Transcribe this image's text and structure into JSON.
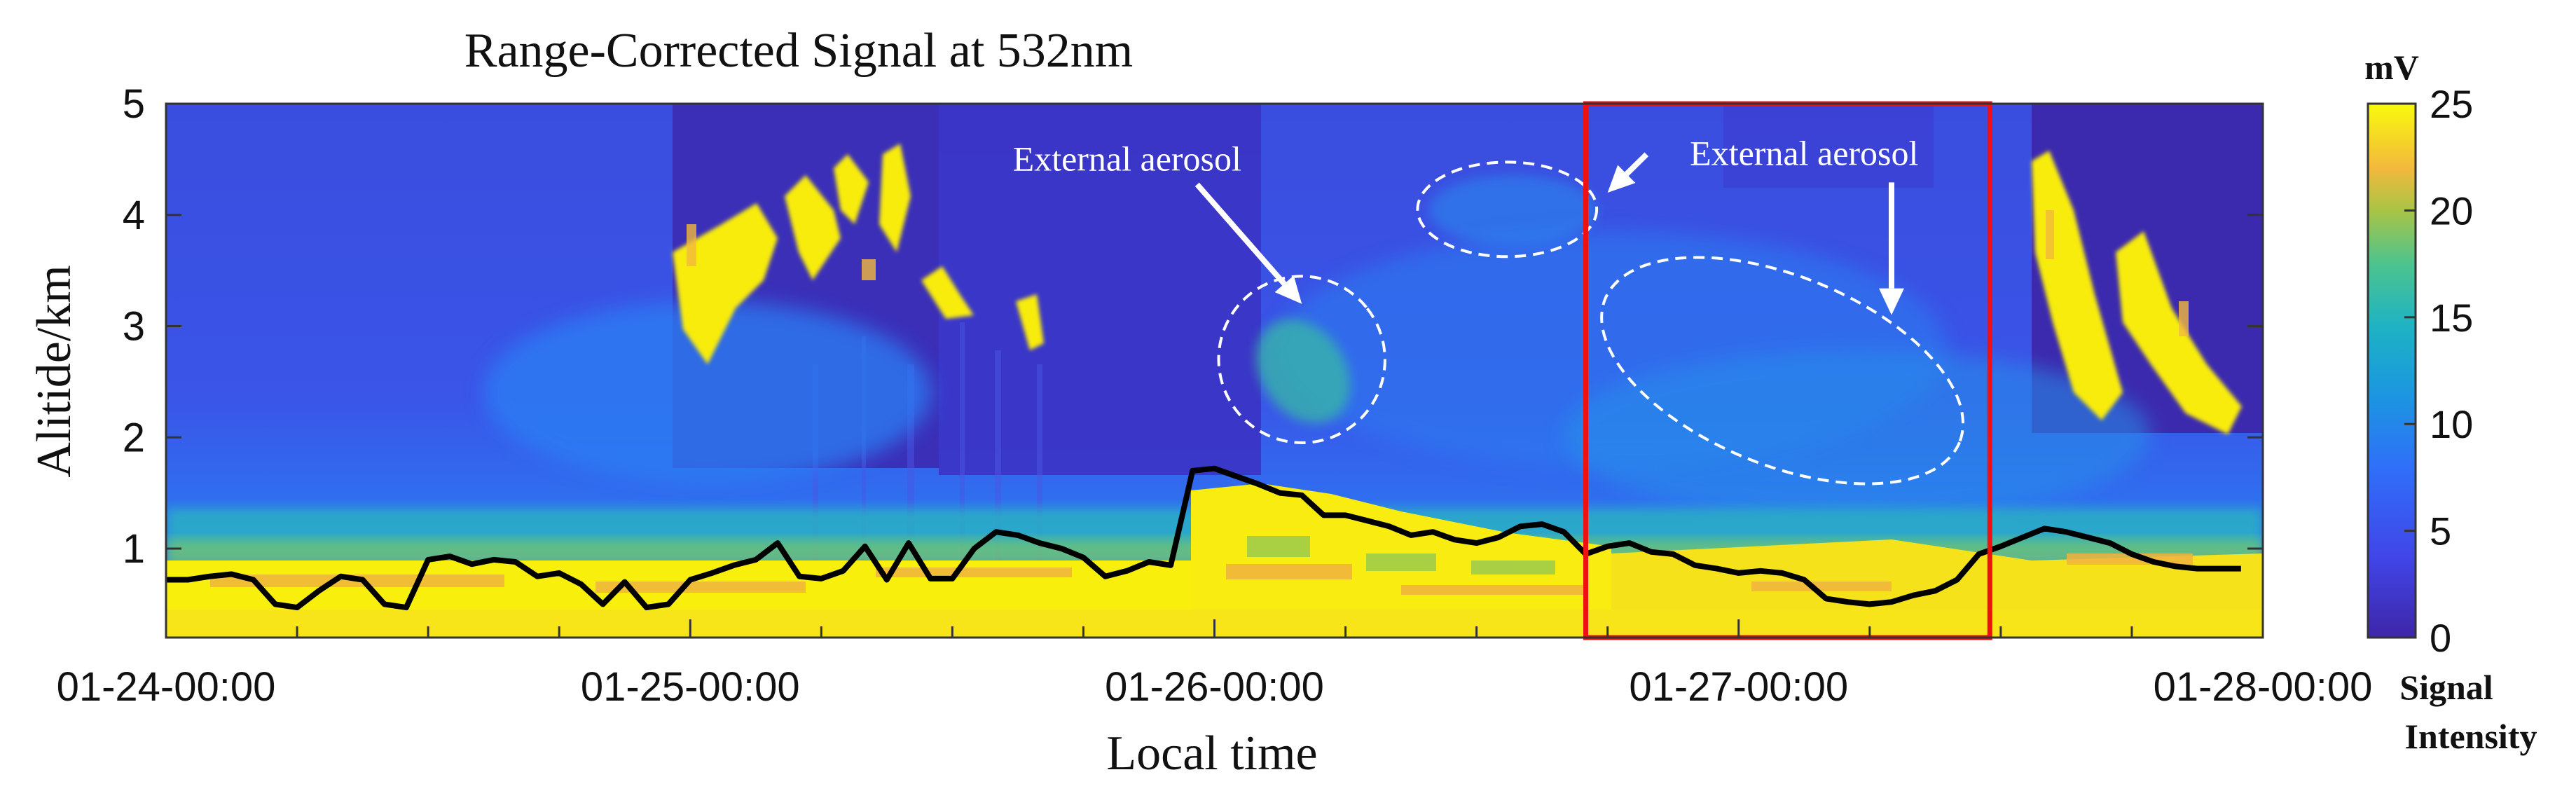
{
  "chart_data": {
    "type": "heatmap",
    "title": "Range-Corrected Signal at 532nm",
    "xlabel": "Local time",
    "ylabel": "Alitide/km",
    "x_tick_labels": [
      "01-24-00:00",
      "01-25-00:00",
      "01-26-00:00",
      "01-27-00:00",
      "01-28-00:00"
    ],
    "xlim_hours": [
      0,
      96
    ],
    "ylim": [
      0.2,
      5
    ],
    "y_ticks": [
      1,
      2,
      3,
      4,
      5
    ],
    "colorbar": {
      "unit": "mV",
      "range": [
        0,
        25
      ],
      "ticks": [
        0,
        5,
        10,
        15,
        20,
        25
      ],
      "label_line1": "Signal",
      "label_line2": "Intensity"
    },
    "boundary_layer_height": {
      "name": "boundary layer height (black line)",
      "x_hours": [
        0,
        1,
        2,
        3,
        4,
        5,
        6,
        7,
        8,
        9,
        10,
        11,
        12,
        13,
        14,
        15,
        16,
        17,
        18,
        19,
        20,
        21,
        22,
        23,
        24,
        25,
        26,
        27,
        28,
        29,
        30,
        31,
        32,
        33,
        34,
        35,
        36,
        37,
        38,
        39,
        40,
        41,
        42,
        43,
        44,
        45,
        46,
        47,
        48,
        49,
        50,
        51,
        52,
        53,
        54,
        55,
        56,
        57,
        58,
        59,
        60,
        61,
        62,
        63,
        64,
        65,
        66,
        67,
        68,
        69,
        70,
        71,
        72,
        73,
        74,
        75,
        76,
        77,
        78,
        79,
        80,
        81,
        82,
        83,
        84,
        85,
        86,
        87,
        88,
        89,
        90,
        91,
        92,
        93,
        94,
        95
      ],
      "values": [
        0.72,
        0.72,
        0.75,
        0.77,
        0.72,
        0.5,
        0.47,
        0.62,
        0.75,
        0.72,
        0.5,
        0.47,
        0.9,
        0.93,
        0.86,
        0.9,
        0.88,
        0.75,
        0.78,
        0.68,
        0.5,
        0.7,
        0.47,
        0.5,
        0.72,
        0.78,
        0.85,
        0.9,
        1.05,
        0.75,
        0.73,
        0.8,
        1.02,
        0.72,
        1.05,
        0.73,
        0.73,
        1.0,
        1.15,
        1.12,
        1.05,
        1.0,
        0.92,
        0.75,
        0.8,
        0.88,
        0.85,
        1.7,
        1.72,
        1.65,
        1.58,
        1.5,
        1.48,
        1.3,
        1.3,
        1.25,
        1.2,
        1.12,
        1.15,
        1.08,
        1.05,
        1.1,
        1.2,
        1.22,
        1.15,
        0.95,
        1.02,
        1.05,
        0.97,
        0.95,
        0.85,
        0.82,
        0.78,
        0.8,
        0.78,
        0.72,
        0.55,
        0.52,
        0.5,
        0.52,
        0.58,
        0.62,
        0.72,
        0.95,
        1.02,
        1.1,
        1.18,
        1.15,
        1.1,
        1.05,
        0.95,
        0.88,
        0.84,
        0.82,
        0.82,
        0.82
      ]
    },
    "highlight_box": {
      "x_range_hours": [
        65,
        83.5
      ],
      "y_range_km": [
        0.2,
        5
      ],
      "color": "#ee1111"
    },
    "annotations": [
      {
        "text": "External aerosol",
        "x_hours": 44,
        "y_km": 4.4,
        "arrow_to": [
          52,
          3.2
        ]
      },
      {
        "text": "External aerosol",
        "x_hours": 75,
        "y_km": 4.45,
        "arrow_to": [
          66,
          4.2
        ],
        "arrow2_to": [
          79,
          3.1
        ]
      }
    ],
    "dashed_ellipses": [
      {
        "center_hours": 52,
        "center_km": 2.7,
        "width_hours": 7.6,
        "height_km": 1.5,
        "rotation_deg": -38
      },
      {
        "center_hours": 61.4,
        "center_km": 4.05,
        "width_hours": 8.2,
        "height_km": 0.85,
        "rotation_deg": 0
      },
      {
        "center_hours": 74,
        "center_km": 2.6,
        "width_hours": 17.5,
        "height_km": 1.7,
        "rotation_deg": 22
      }
    ]
  }
}
